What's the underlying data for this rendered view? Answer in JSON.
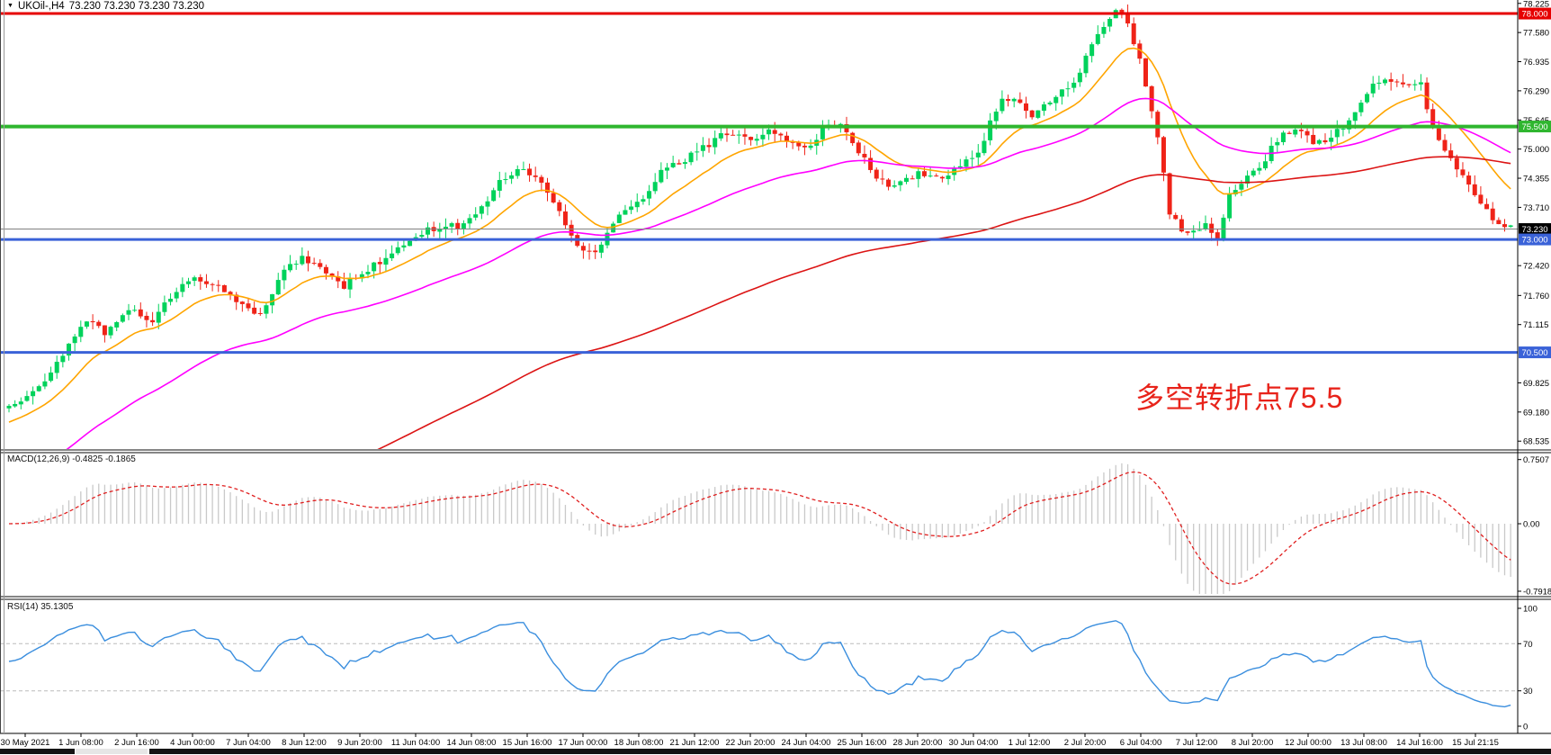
{
  "header": {
    "symbol_period": "UKOil-,H4",
    "ohlc": "73.230 73.230 73.230 73.230"
  },
  "annotation": {
    "text": "多空转折点75.5",
    "color": "#E8231A"
  },
  "indicators": {
    "macd_label": "MACD(12,26,9) -0.4825 -0.1865",
    "rsi_label": "RSI(14) 35.1305"
  },
  "colors": {
    "up": "#00D25B",
    "down": "#EF2318",
    "ma_fast": "#FFA500",
    "ma_mid": "#FF00FF",
    "ma_slow": "#DC1414",
    "price_line": "#808080",
    "macd_hist": "#C9C9C9",
    "macd_signal": "#E02020",
    "rsi_line": "#3A8EDE",
    "rsi_level_dash": "#BBBBBB",
    "axis_text": "#000000",
    "frame": "#444444",
    "scrollbar_dark": "#141414",
    "scrollbar_light": "#E6E6E6"
  },
  "chart_data": {
    "type": "candlestick",
    "symbol": "UKOil-",
    "timeframe": "H4",
    "ohlc_display": [
      "73.230",
      "73.230",
      "73.230",
      "73.230"
    ],
    "ylim": [
      68.4,
      78.3
    ],
    "price_ticks": [
      "78.225",
      "77.580",
      "76.935",
      "76.290",
      "75.645",
      "75.000",
      "74.355",
      "73.710",
      "72.420",
      "71.760",
      "71.115",
      "69.825",
      "69.180",
      "68.535"
    ],
    "levels": [
      {
        "price": 78.0,
        "width": 3,
        "color": "#E60000",
        "label": "78.000",
        "badge": "#E60000",
        "name": "resistance-line-78"
      },
      {
        "price": 75.5,
        "width": 4,
        "color": "#2FB62F",
        "label": "75.500",
        "badge": "#2FB62F",
        "name": "pivot-line-75-5"
      },
      {
        "price": 73.23,
        "width": 1,
        "color": "#808080",
        "label": "73.230",
        "badge": "#000000",
        "name": "current-price-line"
      },
      {
        "price": 73.0,
        "width": 3,
        "color": "#3A62D8",
        "label": "73.000",
        "badge": "#3A62D8",
        "name": "support-line-73"
      },
      {
        "price": 70.5,
        "width": 3,
        "color": "#3A62D8",
        "label": "70.500",
        "badge": "#3A62D8",
        "name": "support-line-70-5"
      }
    ],
    "candle_count": 252,
    "close_waypoints": [
      [
        0.0,
        69.3
      ],
      [
        0.012,
        69.55
      ],
      [
        0.026,
        69.95
      ],
      [
        0.04,
        70.65
      ],
      [
        0.052,
        71.25
      ],
      [
        0.065,
        70.9
      ],
      [
        0.08,
        71.45
      ],
      [
        0.094,
        71.15
      ],
      [
        0.11,
        71.85
      ],
      [
        0.125,
        72.15
      ],
      [
        0.14,
        71.95
      ],
      [
        0.155,
        71.55
      ],
      [
        0.168,
        71.3
      ],
      [
        0.182,
        72.25
      ],
      [
        0.196,
        72.6
      ],
      [
        0.21,
        72.35
      ],
      [
        0.222,
        71.95
      ],
      [
        0.236,
        72.3
      ],
      [
        0.252,
        72.6
      ],
      [
        0.266,
        72.95
      ],
      [
        0.282,
        73.25
      ],
      [
        0.3,
        73.3
      ],
      [
        0.316,
        73.75
      ],
      [
        0.33,
        74.4
      ],
      [
        0.342,
        74.6
      ],
      [
        0.356,
        74.25
      ],
      [
        0.368,
        73.55
      ],
      [
        0.379,
        72.85
      ],
      [
        0.391,
        72.7
      ],
      [
        0.406,
        73.5
      ],
      [
        0.421,
        73.9
      ],
      [
        0.436,
        74.55
      ],
      [
        0.452,
        74.8
      ],
      [
        0.466,
        75.1
      ],
      [
        0.48,
        75.4
      ],
      [
        0.493,
        75.2
      ],
      [
        0.506,
        75.45
      ],
      [
        0.519,
        75.1
      ],
      [
        0.531,
        75.0
      ],
      [
        0.543,
        75.45
      ],
      [
        0.554,
        75.5
      ],
      [
        0.566,
        74.9
      ],
      [
        0.579,
        74.35
      ],
      [
        0.591,
        74.15
      ],
      [
        0.606,
        74.5
      ],
      [
        0.619,
        74.3
      ],
      [
        0.633,
        74.65
      ],
      [
        0.646,
        74.9
      ],
      [
        0.659,
        76.05
      ],
      [
        0.671,
        76.1
      ],
      [
        0.683,
        75.7
      ],
      [
        0.696,
        76.2
      ],
      [
        0.709,
        76.4
      ],
      [
        0.721,
        77.3
      ],
      [
        0.733,
        77.95
      ],
      [
        0.742,
        78.1
      ],
      [
        0.756,
        76.6
      ],
      [
        0.764,
        75.4
      ],
      [
        0.773,
        73.6
      ],
      [
        0.78,
        73.2
      ],
      [
        0.788,
        73.1
      ],
      [
        0.796,
        73.35
      ],
      [
        0.804,
        72.9
      ],
      [
        0.813,
        74.0
      ],
      [
        0.823,
        74.3
      ],
      [
        0.833,
        74.6
      ],
      [
        0.846,
        75.3
      ],
      [
        0.859,
        75.4
      ],
      [
        0.871,
        75.1
      ],
      [
        0.883,
        75.35
      ],
      [
        0.894,
        75.65
      ],
      [
        0.906,
        76.4
      ],
      [
        0.918,
        76.5
      ],
      [
        0.929,
        76.35
      ],
      [
        0.939,
        76.55
      ],
      [
        0.949,
        75.4
      ],
      [
        0.959,
        74.85
      ],
      [
        0.969,
        74.3
      ],
      [
        0.977,
        73.95
      ],
      [
        0.985,
        73.55
      ],
      [
        0.993,
        73.4
      ],
      [
        1.0,
        73.23
      ]
    ],
    "moving_averages": [
      {
        "name": "ma-fast",
        "period": 14,
        "seed": 68.9,
        "color": "#FFA500"
      },
      {
        "name": "ma-mid",
        "period": 48,
        "seed": 67.5,
        "color": "#FF00FF"
      },
      {
        "name": "ma-slow",
        "period": 130,
        "seed": 63.0,
        "color": "#DC1414"
      }
    ],
    "macd": {
      "params": [
        12,
        26,
        9
      ],
      "values_display": [
        "-0.4825",
        "-0.1865"
      ],
      "axis_ticks": [
        {
          "label": "0.7507",
          "v": 0.7507
        },
        {
          "label": "0.00",
          "v": 0.0
        },
        {
          "label": "-0.7918",
          "v": -0.7918
        }
      ]
    },
    "rsi": {
      "period": 14,
      "value_display": "35.1305",
      "axis_ticks": [
        {
          "label": "100",
          "v": 100
        },
        {
          "label": "70",
          "v": 70
        },
        {
          "label": "30",
          "v": 30
        },
        {
          "label": "0",
          "v": 0
        }
      ],
      "dashed_levels": [
        70,
        30
      ]
    },
    "time_labels": [
      "30 May 2021",
      "1 Jun 08:00",
      "2 Jun 16:00",
      "4 Jun 00:00",
      "7 Jun 04:00",
      "8 Jun 12:00",
      "9 Jun 20:00",
      "11 Jun 04:00",
      "14 Jun 08:00",
      "15 Jun 16:00",
      "17 Jun 00:00",
      "18 Jun 08:00",
      "21 Jun 12:00",
      "22 Jun 20:00",
      "24 Jun 04:00",
      "25 Jun 16:00",
      "28 Jun 20:00",
      "30 Jun 04:00",
      "1 Jul 12:00",
      "2 Jul 20:00",
      "6 Jul 04:00",
      "7 Jul 12:00",
      "8 Jul 20:00",
      "12 Jul 00:00",
      "13 Jul 08:00",
      "14 Jul 16:00",
      "15 Jul 21:15"
    ]
  }
}
